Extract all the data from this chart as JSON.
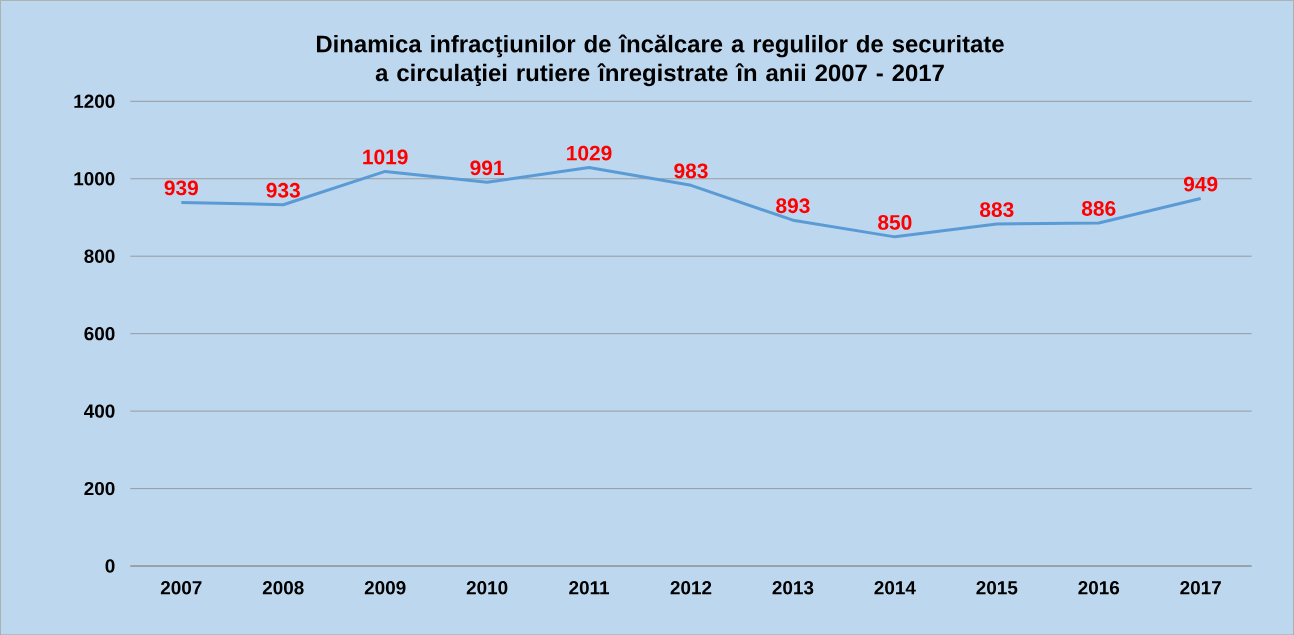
{
  "chart_data": {
    "type": "line",
    "title": "Dinamica infracţiunilor de încălcare a regulilor de securitate a circulaţiei rutiere înregistrate în anii 2007 - 2017",
    "categories": [
      "2007",
      "2008",
      "2009",
      "2010",
      "2011",
      "2012",
      "2013",
      "2014",
      "2015",
      "2016",
      "2017"
    ],
    "values": [
      939,
      933,
      1019,
      991,
      1029,
      983,
      893,
      850,
      883,
      886,
      949
    ],
    "color": "#5b9bd5",
    "ylim": [
      0,
      1200
    ],
    "yticks": [
      0,
      200,
      400,
      600,
      800,
      1000,
      1200
    ],
    "grid": "y",
    "data_labels": true,
    "marker": "none",
    "line_style": "solid"
  }
}
